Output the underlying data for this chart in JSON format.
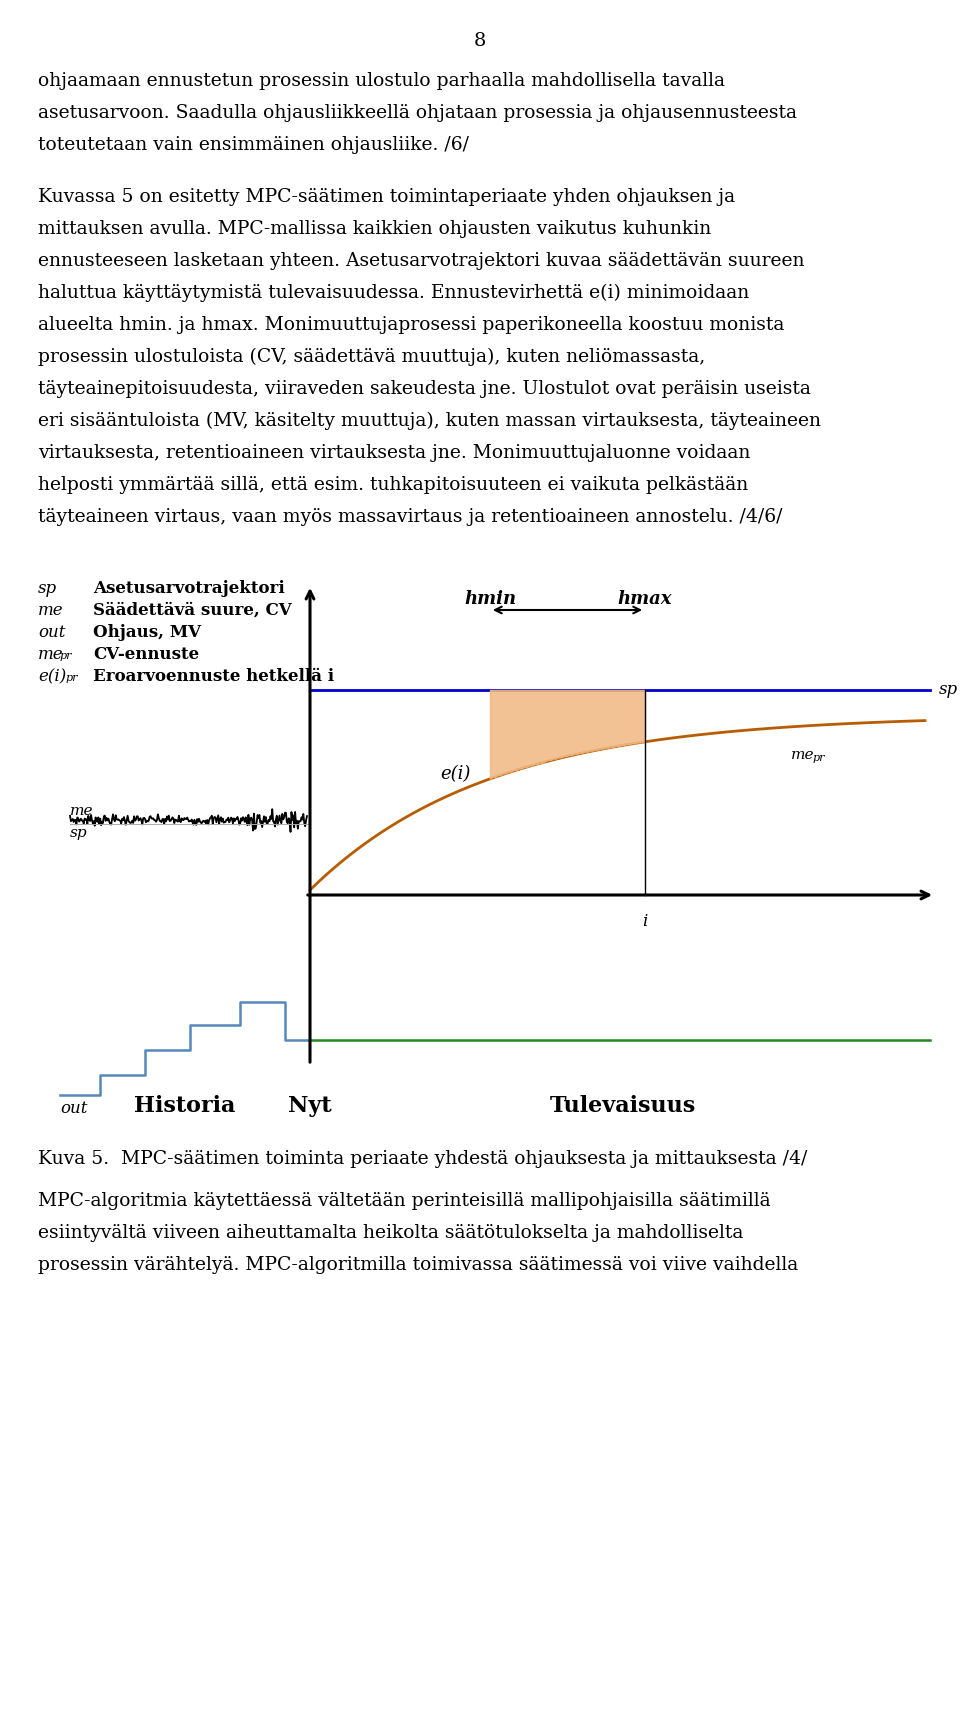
{
  "page_number": "8",
  "para1_lines": [
    "ohjaamaan ennustetun prosessin ulostulo parhaalla mahdollisella tavalla",
    "asetusarvoon. Saadulla ohjausliikkeellä ohjataan prosessia ja ohjausennusteesta",
    "toteutetaan vain ensimmäinen ohjausliike. /6/"
  ],
  "para2_lines": [
    "Kuvassa 5 on esitetty MPC-säätimen toimintaperiaate yhden ohjauksen ja",
    "mittauksen avulla. MPC-mallissa kaikkien ohjausten vaikutus kuhunkin",
    "ennusteeseen lasketaan yhteen. Asetusarvotrajektori kuvaa säädettävän suureen",
    "haluttua käyttäytymistä tulevaisuudessa. Ennustevirhettä e(i) minimoidaan",
    "alueelta hmin. ja hmax. Monimuuttujaprosessi paperikoneella koostuu monista",
    "prosessin ulostuloista (CV, säädettävä muuttuja), kuten neliömassasta,",
    "täyteainepitoisuudesta, viiraveden sakeudesta jne. Ulostulot ovat peräisin useista",
    "eri sisääntuloista (MV, käsitelty muuttuja), kuten massan virtauksesta, täyteaineen",
    "virtauksesta, retentioaineen virtauksesta jne. Monimuuttujaluonne voidaan",
    "helposti ymmärtää sillä, että esim. tuhkapitoisuuteen ei vaikuta pelkästään",
    "täyteaineen virtaus, vaan myös massavirtaus ja retentioaineen annostelu. /4/6/"
  ],
  "caption": "Kuva 5.  MPC-säätimen toiminta periaate yhdestä ohjauksesta ja mittauksesta /4/",
  "last_lines": [
    "MPC-algoritmia käytettäessä vältetään perinteisillä mallipohjaisilla säätimillä",
    "esiintyvältä viiveen aiheuttamalta heikolta säätötulokselta ja mahdolliselta",
    "prosessin värähtelyä. MPC-algoritmilla toimivassa säätimessä voi viive vaihdella"
  ],
  "background_color": "#ffffff",
  "sp_line_color": "#0000cc",
  "me_line_color": "#000000",
  "out_line_color": "#5588bb",
  "me_pr_color": "#b85c00",
  "green_color": "#228822",
  "shade_color": "#f0b882",
  "axis_color": "#000000"
}
